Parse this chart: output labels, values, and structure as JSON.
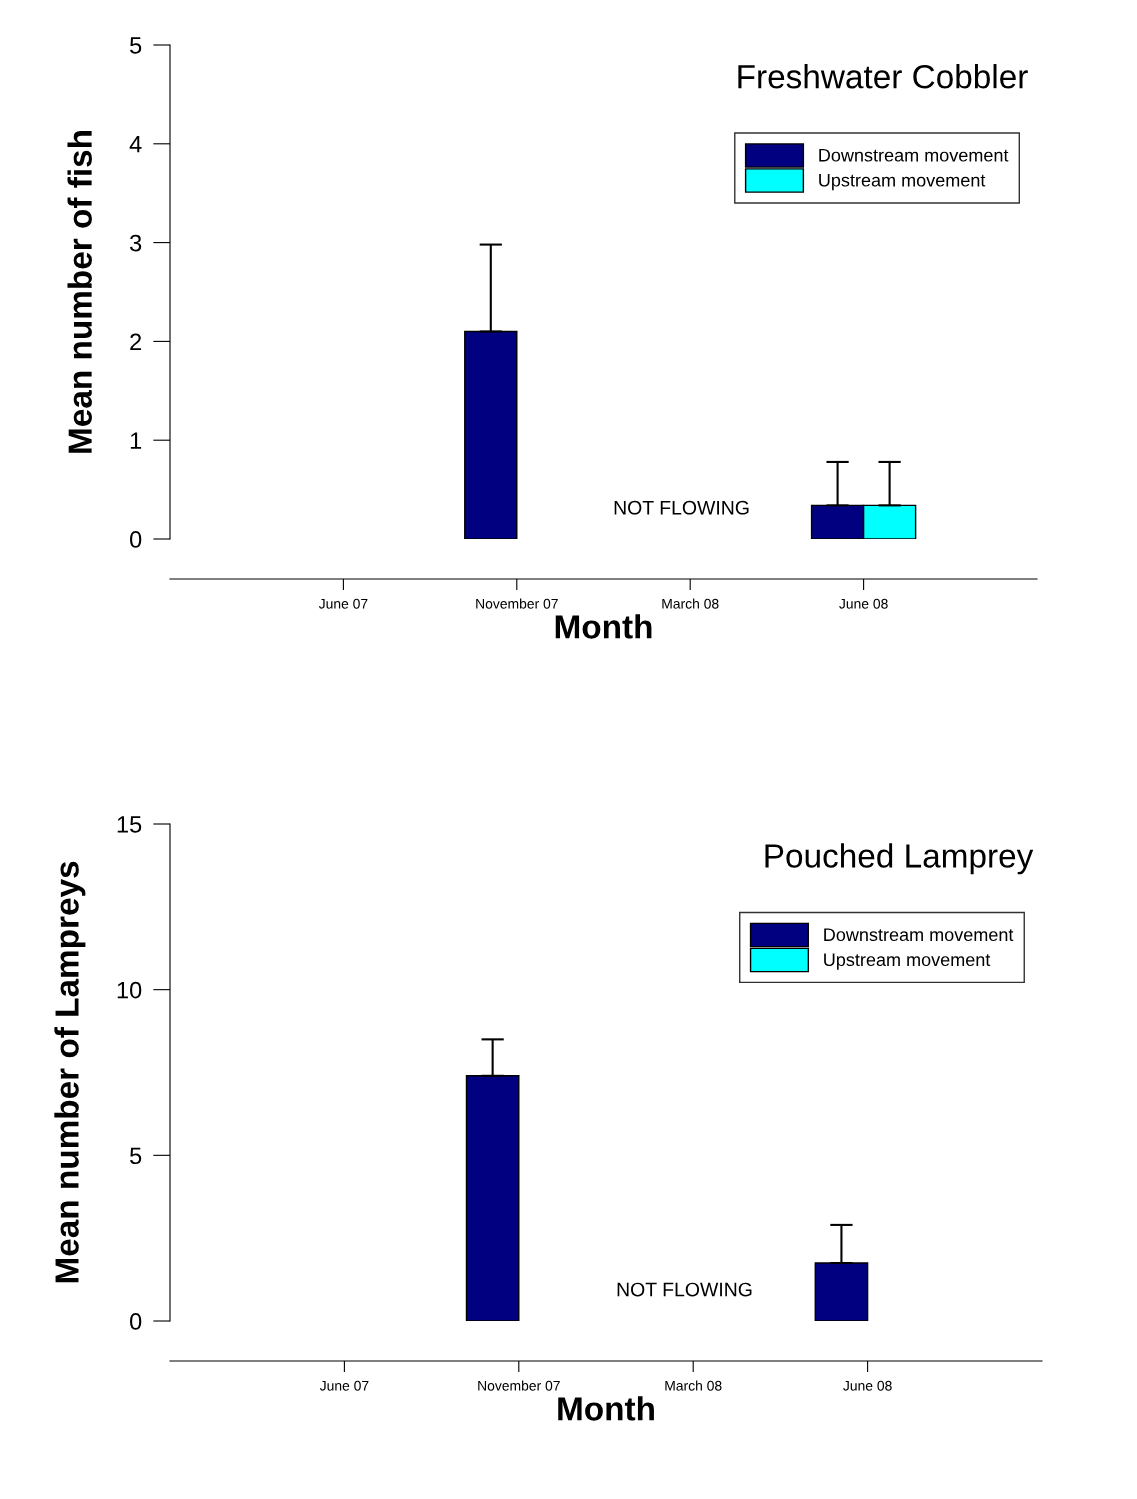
{
  "chart_data": [
    {
      "type": "bar",
      "title": "Freshwater Cobbler",
      "xlabel": "Month",
      "ylabel": "Mean number of fish",
      "categories": [
        "June 07",
        "November 07",
        "March 08",
        "June 08"
      ],
      "series": [
        {
          "name": "Downstream movement",
          "color": "#000080",
          "values": [
            null,
            2.1,
            null,
            0.34
          ],
          "errors": [
            null,
            [
              2.1,
              2.98
            ],
            null,
            [
              0.34,
              0.78
            ]
          ]
        },
        {
          "name": "Upstream movement",
          "color": "#00ffff",
          "values": [
            null,
            null,
            null,
            0.34
          ],
          "errors": [
            null,
            null,
            null,
            [
              0.34,
              0.78
            ]
          ]
        }
      ],
      "ylim": [
        0,
        5
      ],
      "yticks": [
        0,
        1,
        2,
        3,
        4,
        5
      ],
      "grid": false,
      "legend": "top right",
      "annotations": [
        "NOT FLOWING"
      ]
    },
    {
      "type": "bar",
      "title": "Pouched Lamprey",
      "xlabel": "Month",
      "ylabel": "Mean number of Lampreys",
      "categories": [
        "June 07",
        "November 07",
        "March 08",
        "June 08"
      ],
      "series": [
        {
          "name": "Downstream movement",
          "color": "#000080",
          "values": [
            null,
            7.4,
            null,
            1.75
          ],
          "errors": [
            null,
            [
              7.4,
              8.5
            ],
            null,
            [
              1.75,
              2.9
            ]
          ]
        },
        {
          "name": "Upstream movement",
          "color": "#00ffff",
          "values": [
            null,
            null,
            null,
            null
          ],
          "errors": [
            null,
            null,
            null,
            null
          ]
        }
      ],
      "ylim": [
        0,
        15
      ],
      "yticks": [
        0,
        5,
        10,
        15
      ],
      "grid": false,
      "legend": "top right",
      "annotations": [
        "NOT FLOWING"
      ]
    }
  ]
}
